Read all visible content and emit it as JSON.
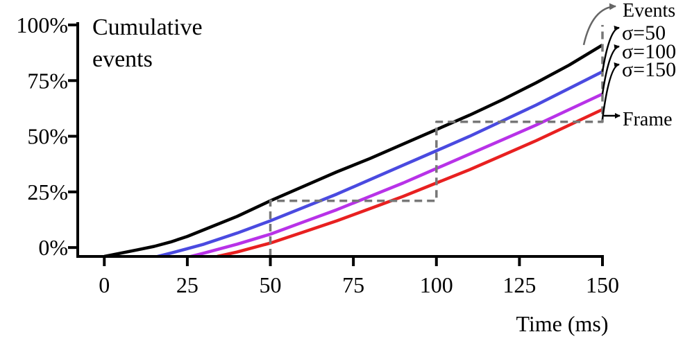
{
  "chart_data": {
    "type": "line",
    "title": "Cumulative events",
    "title_lines": [
      "Cumulative",
      "events"
    ],
    "xlabel": "Time (ms)",
    "ylabel": "",
    "xlim": [
      -8,
      150
    ],
    "ylim": [
      -4,
      100
    ],
    "x_ticks": [
      0,
      25,
      50,
      75,
      100,
      125,
      150
    ],
    "x_tick_labels": [
      "0",
      "25",
      "50",
      "75",
      "100",
      "125",
      "150"
    ],
    "y_ticks": [
      0,
      25,
      50,
      75,
      100
    ],
    "y_tick_labels": [
      "0%",
      "25%",
      "50%",
      "75%",
      "100%"
    ],
    "grid": false,
    "legend": "annotations at right end of lines",
    "series": [
      {
        "name": "Events",
        "color": "#000000",
        "x": [
          0,
          5,
          10,
          15,
          20,
          25,
          30,
          40,
          50,
          60,
          70,
          80,
          90,
          100,
          110,
          120,
          130,
          140,
          150
        ],
        "y": [
          -4,
          -2.5,
          -1,
          0.5,
          2.5,
          5,
          8,
          14,
          21,
          27.5,
          34,
          40,
          46.5,
          53,
          59.5,
          66.5,
          74,
          82,
          91
        ]
      },
      {
        "name": "σ=50",
        "color": "#4a4ae0",
        "x": [
          16,
          20,
          25,
          30,
          40,
          50,
          60,
          70,
          80,
          90,
          100,
          110,
          120,
          130,
          140,
          150
        ],
        "y": [
          -4,
          -2.5,
          -0.5,
          1.5,
          6.5,
          12,
          18,
          24,
          30.5,
          37,
          43.5,
          50,
          57,
          64,
          71.5,
          79
        ]
      },
      {
        "name": "σ=100",
        "color": "#b832e8",
        "x": [
          26,
          30,
          40,
          50,
          60,
          70,
          80,
          90,
          100,
          110,
          120,
          130,
          140,
          150
        ],
        "y": [
          -4,
          -2.5,
          1.5,
          6,
          11.5,
          17,
          23,
          29,
          35.5,
          42,
          48.5,
          55,
          62,
          69
        ]
      },
      {
        "name": "σ=150",
        "color": "#e82020",
        "x": [
          34,
          40,
          50,
          60,
          70,
          80,
          90,
          100,
          110,
          120,
          130,
          140,
          150
        ],
        "y": [
          -4,
          -2,
          2,
          7,
          12,
          17.5,
          23,
          29,
          35,
          41.5,
          48,
          55,
          62
        ]
      },
      {
        "name": "Frame",
        "color": "#777777",
        "style": "dashed-step",
        "x": [
          50,
          50,
          100,
          100,
          150,
          150
        ],
        "y": [
          -4,
          21,
          21,
          56.5,
          56.5,
          100
        ]
      }
    ],
    "annotations": [
      "Events",
      "σ=50",
      "σ=100",
      "σ=150",
      "Frame"
    ]
  }
}
